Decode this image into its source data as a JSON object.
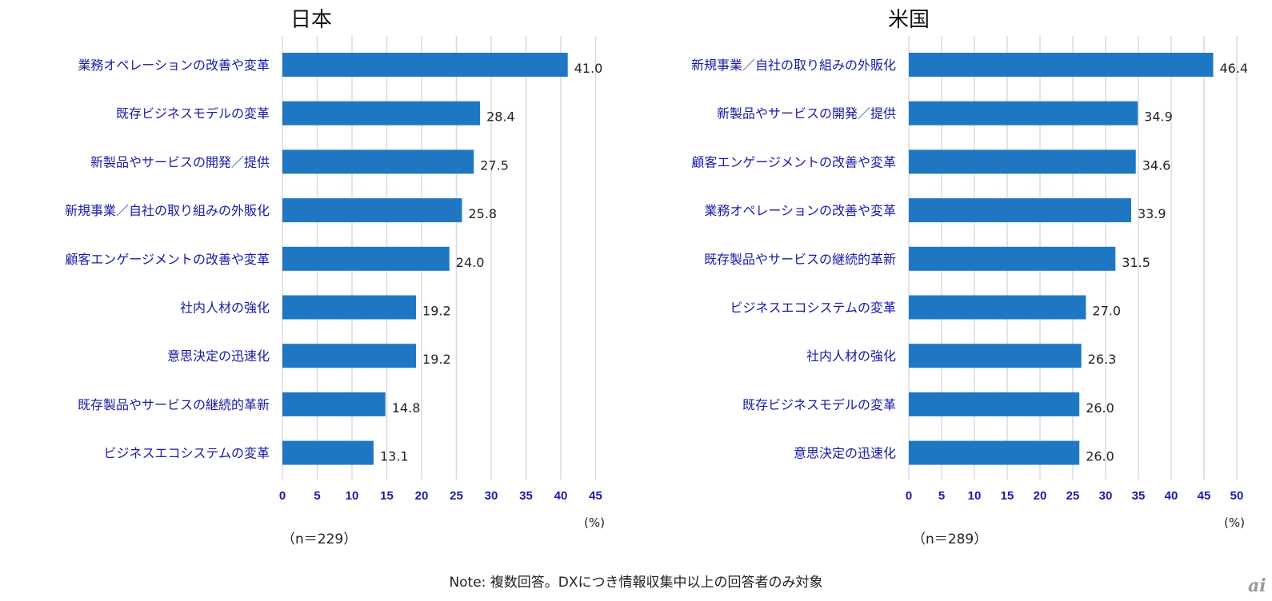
{
  "note": "Note: 複数回答。DXにつき情報収集中以上の回答者のみ対象",
  "logo": "ai",
  "colors": {
    "bar": "#1f77c4",
    "label": "#1a1aa8",
    "grid": "#d8d8ec"
  },
  "chart_data": [
    {
      "type": "bar",
      "orientation": "horizontal",
      "title": "日本",
      "n_label": "（n＝229）",
      "unit_label": "(%)",
      "xlim": [
        0,
        45
      ],
      "ticks": [
        0,
        5,
        10,
        15,
        20,
        25,
        30,
        35,
        40,
        45
      ],
      "grid": true,
      "categories": [
        "業務オペレーションの改善や変革",
        "既存ビジネスモデルの変革",
        "新製品やサービスの開発／提供",
        "新規事業／自社の取り組みの外販化",
        "顧客エンゲージメントの改善や変革",
        "社内人材の強化",
        "意思決定の迅速化",
        "既存製品やサービスの継続的革新",
        "ビジネスエコシステムの変革"
      ],
      "values": [
        41.0,
        28.4,
        27.5,
        25.8,
        24.0,
        19.2,
        19.2,
        14.8,
        13.1
      ]
    },
    {
      "type": "bar",
      "orientation": "horizontal",
      "title": "米国",
      "n_label": "（n＝289）",
      "unit_label": "(%)",
      "xlim": [
        0,
        50
      ],
      "ticks": [
        0,
        5,
        10,
        15,
        20,
        25,
        30,
        35,
        40,
        45,
        50
      ],
      "grid": true,
      "categories": [
        "新規事業／自社の取り組みの外販化",
        "新製品やサービスの開発／提供",
        "顧客エンゲージメントの改善や変革",
        "業務オペレーションの改善や変革",
        "既存製品やサービスの継続的革新",
        "ビジネスエコシステムの変革",
        "社内人材の強化",
        "既存ビジネスモデルの変革",
        "意思決定の迅速化"
      ],
      "values": [
        46.4,
        34.9,
        34.6,
        33.9,
        31.5,
        27.0,
        26.3,
        26.0,
        26.0
      ]
    }
  ]
}
